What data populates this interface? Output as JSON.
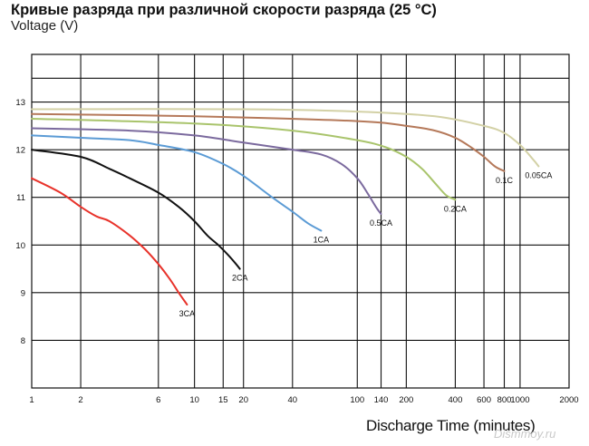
{
  "chart_data": {
    "type": "line",
    "title": "Кривые разряда при различной скорости разряда (25 °С)",
    "ylabel": "Voltage (V)",
    "xlabel": "Discharge Time (minutes)",
    "x_scale": "log",
    "xlim": [
      1,
      2000
    ],
    "ylim": [
      7,
      14
    ],
    "grid": true,
    "x_ticks": [
      1,
      2,
      6,
      10,
      15,
      20,
      40,
      100,
      140,
      200,
      400,
      600,
      800,
      1000,
      2000
    ],
    "x_tick_labels": [
      "1",
      "2",
      "6",
      "10",
      "15",
      "20",
      "40",
      "100",
      "140",
      "200",
      "400",
      "600",
      "800",
      "1000",
      "2000"
    ],
    "y_ticks": [
      8,
      9,
      10,
      11,
      12,
      13
    ],
    "y_tick_labels": [
      "8",
      "9",
      "10",
      "11",
      "12",
      "13"
    ],
    "series": [
      {
        "name": "3CA",
        "color": "#e8332b",
        "x": [
          1,
          1.5,
          2,
          2.5,
          3,
          4,
          5,
          6,
          7,
          8,
          9
        ],
        "y": [
          11.4,
          11.1,
          10.8,
          10.6,
          10.5,
          10.2,
          9.9,
          9.6,
          9.3,
          9.0,
          8.75
        ]
      },
      {
        "name": "2CA",
        "color": "#111111",
        "x": [
          1,
          2,
          3,
          4,
          6,
          8,
          10,
          12,
          14,
          16,
          18,
          19
        ],
        "y": [
          12.0,
          11.85,
          11.6,
          11.4,
          11.1,
          10.8,
          10.5,
          10.2,
          10.0,
          9.8,
          9.6,
          9.5
        ]
      },
      {
        "name": "1CA",
        "color": "#5b9bd5",
        "x": [
          1,
          2,
          4,
          6,
          10,
          15,
          20,
          30,
          40,
          50,
          60
        ],
        "y": [
          12.3,
          12.25,
          12.2,
          12.1,
          11.95,
          11.7,
          11.45,
          11.0,
          10.7,
          10.45,
          10.3
        ]
      },
      {
        "name": "0.5CA",
        "color": "#7b6a9e",
        "x": [
          1,
          4,
          10,
          20,
          40,
          60,
          80,
          100,
          115,
          130,
          140
        ],
        "y": [
          12.45,
          12.4,
          12.3,
          12.15,
          12.0,
          11.9,
          11.7,
          11.4,
          11.1,
          10.8,
          10.65
        ]
      },
      {
        "name": "0.2CA",
        "color": "#a9c46c",
        "x": [
          1,
          10,
          40,
          100,
          150,
          200,
          250,
          300,
          350,
          400
        ],
        "y": [
          12.65,
          12.55,
          12.4,
          12.2,
          12.05,
          11.85,
          11.6,
          11.3,
          11.05,
          10.95
        ]
      },
      {
        "name": "0.1C",
        "color": "#b5795a",
        "x": [
          1,
          10,
          100,
          200,
          300,
          400,
          500,
          600,
          700,
          800
        ],
        "y": [
          12.75,
          12.7,
          12.6,
          12.5,
          12.4,
          12.25,
          12.05,
          11.85,
          11.65,
          11.55
        ]
      },
      {
        "name": "0.05CA",
        "color": "#d3d1a6",
        "x": [
          1,
          20,
          100,
          300,
          600,
          800,
          1000,
          1200,
          1300
        ],
        "y": [
          12.85,
          12.85,
          12.8,
          12.7,
          12.5,
          12.35,
          12.1,
          11.8,
          11.65
        ]
      }
    ],
    "series_labels": [
      "3CA",
      "2CA",
      "1CA",
      "0.5CA",
      "0.2CA",
      "0.1C",
      "0.05CA"
    ]
  },
  "watermark": "Dismmoy.ru"
}
